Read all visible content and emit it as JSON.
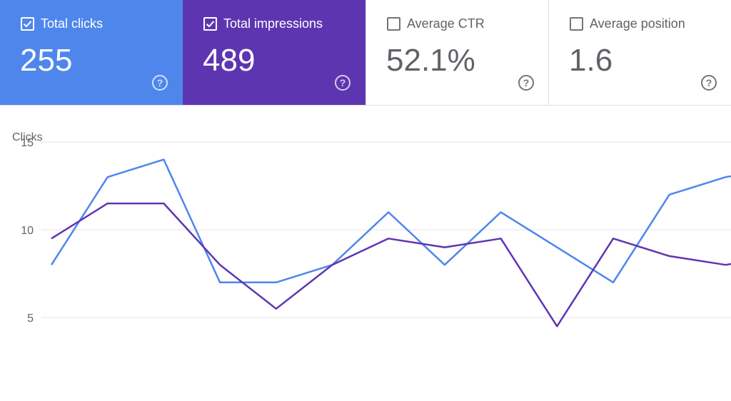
{
  "metrics": [
    {
      "label": "Total clicks",
      "value": "255",
      "checked": true,
      "color": "#4e86ec",
      "help": "?"
    },
    {
      "label": "Total impressions",
      "value": "489",
      "checked": true,
      "color": "#5e35b1",
      "help": "?"
    },
    {
      "label": "Average CTR",
      "value": "52.1%",
      "checked": false,
      "color": "#ffffff",
      "help": "?"
    },
    {
      "label": "Average position",
      "value": "1.6",
      "checked": false,
      "color": "#ffffff",
      "help": "?"
    }
  ],
  "chart_data": {
    "type": "line",
    "title": "",
    "ylabel": "Clicks",
    "xlabel": "",
    "ylim": [
      3,
      15
    ],
    "y_ticks": [
      15,
      10,
      5
    ],
    "grid": true,
    "x": [
      1,
      2,
      3,
      4,
      5,
      6,
      7,
      8,
      9,
      10,
      11,
      12,
      13,
      14
    ],
    "series": [
      {
        "color": "#4e86ec",
        "values": [
          8,
          13,
          14,
          7,
          7,
          8,
          11,
          8,
          11,
          9,
          7,
          12,
          13,
          13.5
        ]
      },
      {
        "color": "#5e35b1",
        "values": [
          9.5,
          11.5,
          11.5,
          8,
          5.5,
          8,
          9.5,
          9,
          9.5,
          4.5,
          9.5,
          8.5,
          8,
          8.5
        ]
      }
    ]
  }
}
